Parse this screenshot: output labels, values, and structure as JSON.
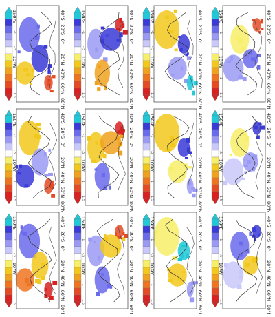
{
  "figure": {
    "rotation_degrees": 90,
    "panel_grid": {
      "rows": 3,
      "columns": 4
    },
    "longitude_tick_labels": [
      "150°E",
      "",
      "",
      "",
      "",
      "",
      "",
      "10°W"
    ],
    "latitude_tick_labels": [
      "40°S",
      "20°S",
      "0°",
      "20°N",
      "40°N",
      "60°N",
      "80°N"
    ],
    "colorbar_labels": [
      "-1.5",
      "-1",
      "-.5",
      ".5",
      "1",
      "1.5"
    ],
    "colorbar_colors": [
      "#20c8d8",
      "#3a3ad8",
      "#6a6aec",
      "#9a9af4",
      "#c8c8fa",
      "#ffffff",
      "#f7ef6a",
      "#f2c81c",
      "#f0a21e",
      "#ee7422",
      "#e44a24",
      "#d82222"
    ],
    "panels": [
      {
        "id": "p1",
        "anomaly_colors": [
          "#6a6aec",
          "#3a3ad8",
          "#f2c81c",
          "#e44a24"
        ]
      },
      {
        "id": "p2",
        "anomaly_colors": [
          "#9a9af4",
          "#3a3ad8",
          "#f0a21e",
          "#d82222"
        ]
      },
      {
        "id": "p3",
        "anomaly_colors": [
          "#f2c81c",
          "#9a9af4",
          "#3a3ad8",
          "#20c8d8"
        ]
      },
      {
        "id": "p4",
        "anomaly_colors": [
          "#f7ef6a",
          "#9a9af4",
          "#6a6aec",
          "#e44a24"
        ]
      },
      {
        "id": "p5",
        "anomaly_colors": [
          "#f2c81c",
          "#9a9af4",
          "#3a3ad8",
          "#e44a24"
        ]
      },
      {
        "id": "p6",
        "anomaly_colors": [
          "#f2c81c",
          "#f0a21e",
          "#6a6aec",
          "#d82222"
        ]
      },
      {
        "id": "p7",
        "anomaly_colors": [
          "#f2c81c",
          "#f7ef6a",
          "#3a3ad8",
          "#9a9af4"
        ]
      },
      {
        "id": "p8",
        "anomaly_colors": [
          "#f7ef6a",
          "#c8c8fa",
          "#9a9af4",
          "#3a3ad8"
        ]
      },
      {
        "id": "p9",
        "anomaly_colors": [
          "#6a6aec",
          "#f2c81c",
          "#ee7422",
          "#d82222"
        ]
      },
      {
        "id": "p10",
        "anomaly_colors": [
          "#9a9af4",
          "#f2c81c",
          "#6a6aec",
          "#e44a24"
        ]
      },
      {
        "id": "p11",
        "anomaly_colors": [
          "#f7ef6a",
          "#f2c81c",
          "#20c8d8",
          "#9a9af4"
        ]
      },
      {
        "id": "p12",
        "anomaly_colors": [
          "#6a6aec",
          "#c8c8fa",
          "#f2c81c",
          "#3a3ad8"
        ]
      }
    ]
  }
}
